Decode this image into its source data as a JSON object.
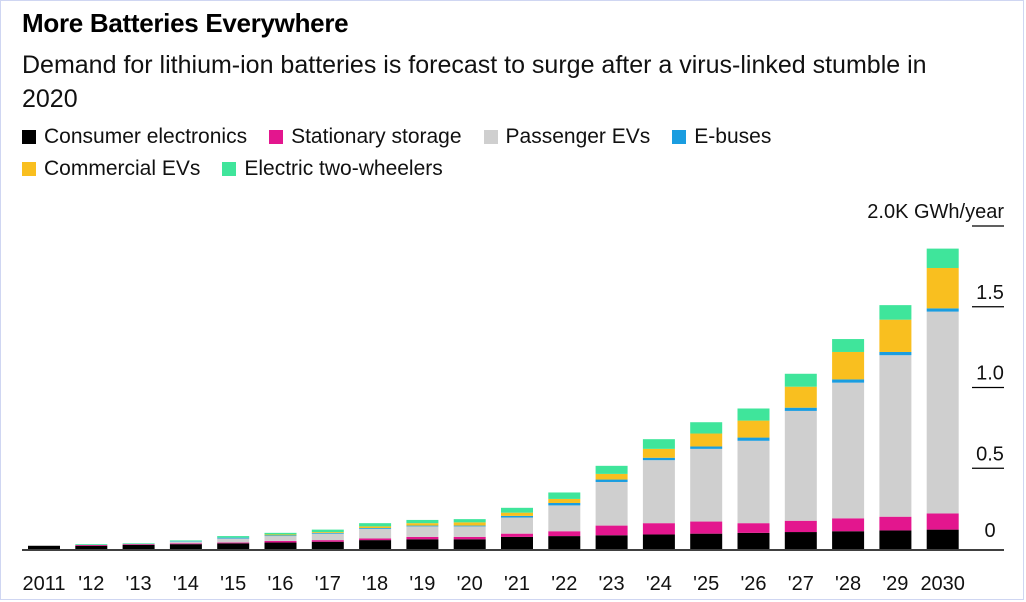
{
  "title": "More Batteries Everywhere",
  "subtitle": "Demand for lithium-ion batteries is forecast to surge after a virus-linked stumble in 2020",
  "colors": {
    "consumer": "#000000",
    "stationary": "#e3168e",
    "passenger": "#cfcfcf",
    "ebuses": "#1a9de0",
    "commercial": "#f9bf1f",
    "twowheel": "#3fe59b",
    "gridline": "#000000"
  },
  "legend": [
    {
      "label": "Consumer electronics",
      "color": "#000000"
    },
    {
      "label": "Stationary storage",
      "color": "#e3168e"
    },
    {
      "label": "Passenger EVs",
      "color": "#cfcfcf"
    },
    {
      "label": "E-buses",
      "color": "#1a9de0"
    },
    {
      "label": "Commercial EVs",
      "color": "#f9bf1f"
    },
    {
      "label": "Electric two-wheelers",
      "color": "#3fe59b"
    }
  ],
  "chart_data": {
    "type": "bar",
    "stacked": true,
    "categories": [
      "2011",
      "'12",
      "'13",
      "'14",
      "'15",
      "'16",
      "'17",
      "'18",
      "'19",
      "'20",
      "'21",
      "'22",
      "'23",
      "'24",
      "'25",
      "'26",
      "'27",
      "'28",
      "'29",
      "2030"
    ],
    "series": [
      {
        "name": "Consumer electronics",
        "color": "#000000",
        "values": [
          20,
          20,
          25,
          30,
          35,
          40,
          45,
          55,
          60,
          60,
          75,
          80,
          85,
          90,
          95,
          100,
          105,
          110,
          115,
          120
        ]
      },
      {
        "name": "Stationary storage",
        "color": "#e3168e",
        "values": [
          0,
          5,
          5,
          5,
          5,
          10,
          10,
          10,
          15,
          15,
          20,
          30,
          60,
          70,
          75,
          60,
          70,
          80,
          85,
          100
        ]
      },
      {
        "name": "Passenger EVs",
        "color": "#cfcfcf",
        "values": [
          0,
          0,
          0,
          10,
          25,
          30,
          40,
          60,
          65,
          65,
          100,
          160,
          270,
          390,
          450,
          510,
          680,
          840,
          1000,
          1250
        ]
      },
      {
        "name": "E-buses",
        "color": "#1a9de0",
        "values": [
          0,
          0,
          0,
          3,
          5,
          5,
          5,
          5,
          5,
          5,
          10,
          15,
          15,
          15,
          15,
          20,
          20,
          20,
          20,
          20
        ]
      },
      {
        "name": "Commercial EVs",
        "color": "#f9bf1f",
        "values": [
          0,
          0,
          0,
          0,
          0,
          5,
          5,
          10,
          15,
          20,
          20,
          25,
          35,
          55,
          80,
          105,
          130,
          170,
          200,
          250
        ]
      },
      {
        "name": "Electric two-wheelers",
        "color": "#3fe59b",
        "values": [
          0,
          5,
          5,
          5,
          10,
          10,
          15,
          20,
          20,
          20,
          30,
          40,
          50,
          60,
          70,
          75,
          80,
          80,
          90,
          120
        ]
      }
    ],
    "y_ticks": [
      {
        "value": 0,
        "label": "0"
      },
      {
        "value": 500,
        "label": "0.5"
      },
      {
        "value": 1000,
        "label": "1.0"
      },
      {
        "value": 1500,
        "label": "1.5"
      },
      {
        "value": 2000,
        "label": "2.0K GWh/year"
      }
    ],
    "ylim": [
      0,
      2000
    ],
    "ylabel": "2.0K GWh/year",
    "xlabel": "",
    "grid": false,
    "legend_position": "top-left"
  }
}
